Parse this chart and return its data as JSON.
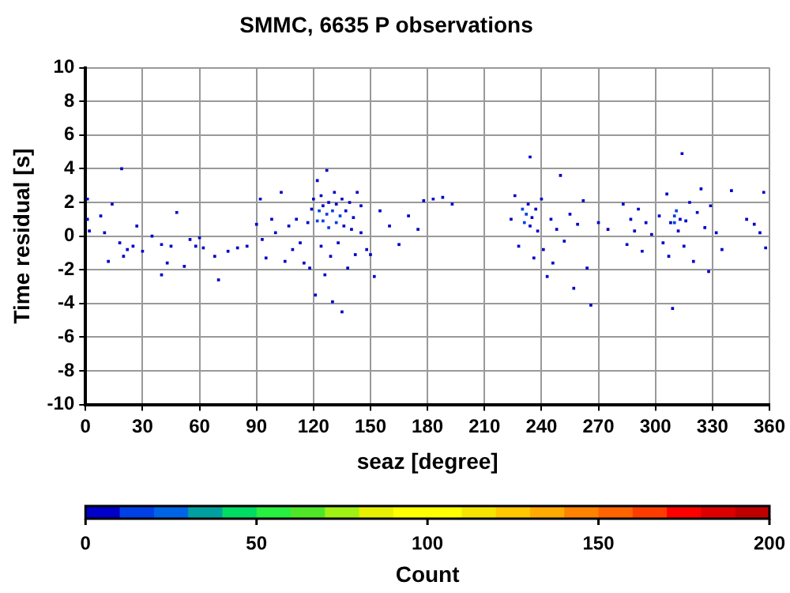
{
  "chart_data": {
    "type": "scatter",
    "title": "SMMC, 6635 P observations",
    "xlabel": "seaz [degree]",
    "ylabel": "Time residual [s]",
    "clabel": "Count",
    "xlim": [
      0,
      360
    ],
    "xticks": [
      0,
      30,
      60,
      90,
      120,
      150,
      180,
      210,
      240,
      270,
      300,
      330,
      360
    ],
    "ylim": [
      -10,
      10
    ],
    "yticks": [
      -10,
      -8,
      -6,
      -4,
      -2,
      0,
      2,
      4,
      6,
      8,
      10
    ],
    "clim": [
      0,
      200
    ],
    "cticks": [
      0,
      50,
      100,
      150,
      200
    ],
    "grid": true,
    "marker": "square",
    "x": [
      1,
      1,
      2,
      8,
      10,
      12,
      14,
      18,
      19,
      20,
      22,
      25,
      27,
      30,
      35,
      40,
      40,
      43,
      45,
      48,
      52,
      55,
      58,
      60,
      62,
      68,
      70,
      75,
      80,
      85,
      90,
      92,
      93,
      95,
      98,
      100,
      103,
      105,
      107,
      109,
      111,
      113,
      115,
      117,
      118,
      119,
      120,
      121,
      122,
      122,
      123,
      124,
      124,
      125,
      125,
      126,
      127,
      127,
      128,
      128,
      129,
      130,
      130,
      131,
      132,
      132,
      133,
      134,
      135,
      135,
      136,
      137,
      138,
      139,
      140,
      141,
      142,
      143,
      145,
      145,
      148,
      150,
      152,
      155,
      160,
      165,
      170,
      175,
      178,
      183,
      188,
      193,
      224,
      226,
      228,
      230,
      231,
      232,
      233,
      234,
      234,
      235,
      236,
      237,
      238,
      240,
      241,
      243,
      245,
      246,
      248,
      250,
      252,
      255,
      257,
      259,
      262,
      264,
      266,
      270,
      275,
      283,
      285,
      287,
      289,
      291,
      293,
      295,
      298,
      302,
      304,
      306,
      307,
      308,
      309,
      310,
      310,
      311,
      312,
      313,
      314,
      315,
      316,
      318,
      320,
      322,
      324,
      326,
      328,
      329,
      332,
      335,
      340,
      348,
      352,
      355,
      357,
      358
    ],
    "values": [
      2.2,
      1.0,
      0.3,
      1.2,
      0.2,
      -1.5,
      1.9,
      -0.4,
      4.0,
      -1.2,
      -0.8,
      -0.6,
      0.6,
      -0.9,
      0.0,
      -0.5,
      -2.3,
      -1.6,
      -0.6,
      1.4,
      -1.8,
      -0.2,
      -0.6,
      -0.1,
      -0.7,
      -1.2,
      -2.6,
      -0.9,
      -0.7,
      -0.6,
      0.7,
      2.2,
      -0.2,
      -1.3,
      1.0,
      0.2,
      2.6,
      -1.5,
      0.6,
      -0.8,
      1.0,
      -0.4,
      -1.6,
      0.8,
      -1.9,
      1.6,
      2.2,
      -3.5,
      0.9,
      3.3,
      1.5,
      -0.6,
      2.4,
      0.9,
      1.8,
      -2.3,
      1.3,
      3.9,
      0.5,
      2.0,
      -1.2,
      1.5,
      -3.9,
      2.6,
      0.8,
      1.9,
      -0.4,
      1.2,
      2.2,
      -4.5,
      0.6,
      1.5,
      -1.9,
      2.0,
      0.4,
      1.1,
      -1.1,
      2.6,
      0.2,
      1.8,
      -0.8,
      -1.1,
      -2.4,
      1.5,
      0.6,
      -0.5,
      1.2,
      0.4,
      2.1,
      2.2,
      2.3,
      1.9,
      1.0,
      2.4,
      -0.6,
      1.6,
      0.8,
      1.3,
      1.9,
      4.7,
      0.6,
      1.1,
      -1.3,
      1.6,
      0.3,
      2.2,
      -0.8,
      -2.4,
      1.0,
      -1.6,
      0.4,
      3.6,
      -0.3,
      1.3,
      -3.1,
      0.7,
      2.1,
      -1.9,
      -4.1,
      0.8,
      0.4,
      1.9,
      -0.5,
      1.0,
      0.3,
      1.6,
      -0.9,
      0.8,
      0.1,
      1.2,
      -0.4,
      2.5,
      -1.2,
      0.8,
      -4.3,
      1.2,
      0.8,
      1.5,
      0.3,
      1.0,
      4.9,
      -0.6,
      0.9,
      2.0,
      -1.5,
      1.4,
      2.8,
      0.5,
      -2.1,
      1.8,
      0.2,
      -0.8,
      2.7,
      1.0,
      0.7,
      0.2,
      2.6,
      -0.7
    ],
    "cvalues": [
      2,
      2,
      1,
      1,
      1,
      1,
      1,
      1,
      1,
      1,
      1,
      1,
      1,
      1,
      1,
      1,
      1,
      1,
      1,
      1,
      1,
      1,
      1,
      1,
      1,
      1,
      1,
      1,
      1,
      1,
      2,
      1,
      3,
      1,
      2,
      2,
      1,
      2,
      3,
      1,
      4,
      2,
      1,
      5,
      1,
      6,
      3,
      1,
      12,
      1,
      15,
      6,
      3,
      14,
      8,
      1,
      16,
      1,
      13,
      9,
      3,
      14,
      1,
      5,
      16,
      8,
      4,
      12,
      5,
      1,
      9,
      6,
      1,
      4,
      5,
      5,
      2,
      2,
      2,
      1,
      1,
      1,
      1,
      1,
      1,
      1,
      1,
      1,
      1,
      1,
      1,
      1,
      4,
      2,
      4,
      12,
      15,
      16,
      8,
      1,
      7,
      5,
      3,
      6,
      4,
      2,
      3,
      1,
      4,
      2,
      3,
      1,
      3,
      2,
      1,
      2,
      2,
      1,
      1,
      1,
      1,
      1,
      2,
      4,
      5,
      3,
      2,
      3,
      2,
      2,
      3,
      2,
      1,
      6,
      1,
      14,
      16,
      13,
      8,
      6,
      1,
      3,
      6,
      3,
      2,
      3,
      1,
      3,
      1,
      2,
      1,
      1,
      1,
      1,
      1,
      1,
      1,
      1
    ]
  }
}
